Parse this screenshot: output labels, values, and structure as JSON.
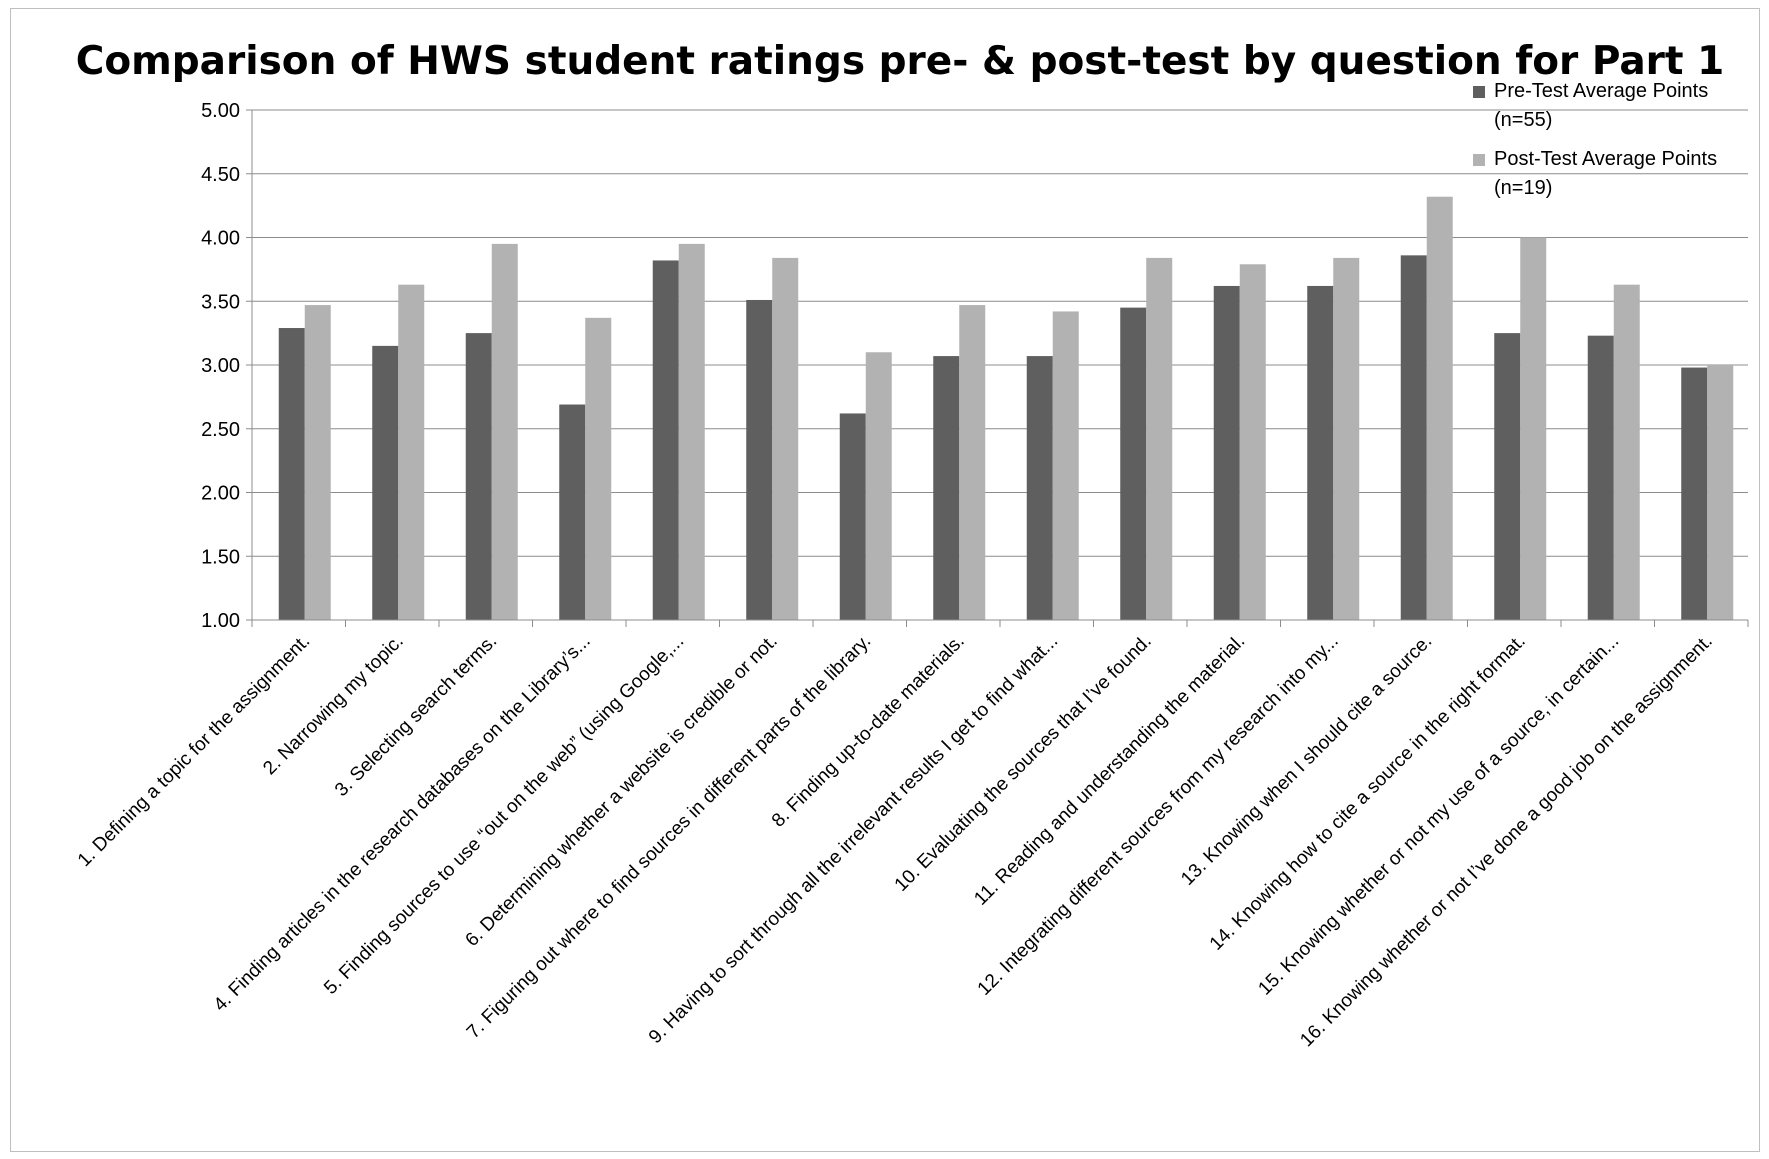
{
  "chart_data": {
    "type": "bar",
    "title": "Comparison of HWS student ratings pre- & post-test by question for Part 1",
    "xlabel": "",
    "ylabel": "",
    "ylim": [
      1.0,
      5.0
    ],
    "y_ticks": [
      "1.00",
      "1.50",
      "2.00",
      "2.50",
      "3.00",
      "3.50",
      "4.00",
      "4.50",
      "5.00"
    ],
    "grid": true,
    "legend_position": "top-right",
    "categories": [
      "1. Defining a topic for the assignment.",
      "2. Narrowing my topic.",
      "3. Selecting search terms.",
      "4. Finding articles in the research databases on the Library’s...",
      "5. Finding sources to use “out on the web” (using Google,...",
      "6. Determining whether a website is credible or not.",
      "7. Figuring out where to find sources in different parts of the library.",
      "8. Finding up-to-date materials.",
      "9. Having to sort through all the irrelevant results I get to find what...",
      "10. Evaluating the sources that I’ve found.",
      "11. Reading and understanding the material.",
      "12. Integrating different sources from my research into my...",
      "13. Knowing when I should cite a source.",
      "14. Knowing how to cite a source in the right format.",
      "15. Knowing whether or not my use of a source, in certain...",
      "16. Knowing whether or not I’ve done a good job on the assignment."
    ],
    "series": [
      {
        "name": "Pre-Test Average Points (n=55)",
        "legend_lines": [
          "Pre-Test Average Points",
          "(n=55)"
        ],
        "color": "#5f5f5f",
        "values": [
          3.29,
          3.15,
          3.25,
          2.69,
          3.82,
          3.51,
          2.62,
          3.07,
          3.07,
          3.45,
          3.62,
          3.62,
          3.86,
          3.25,
          3.23,
          2.98
        ]
      },
      {
        "name": "Post-Test Average Points (n=19)",
        "legend_lines": [
          "Post-Test Average Points",
          "(n=19)"
        ],
        "color": "#b2b2b2",
        "values": [
          3.47,
          3.63,
          3.95,
          3.37,
          3.95,
          3.84,
          3.1,
          3.47,
          3.42,
          3.84,
          3.79,
          3.84,
          4.32,
          4.0,
          3.63,
          3.0
        ]
      }
    ]
  },
  "colors": {
    "gridline": "#8c8c8c",
    "axis": "#8c8c8c",
    "frame": "#bfbfbf"
  }
}
